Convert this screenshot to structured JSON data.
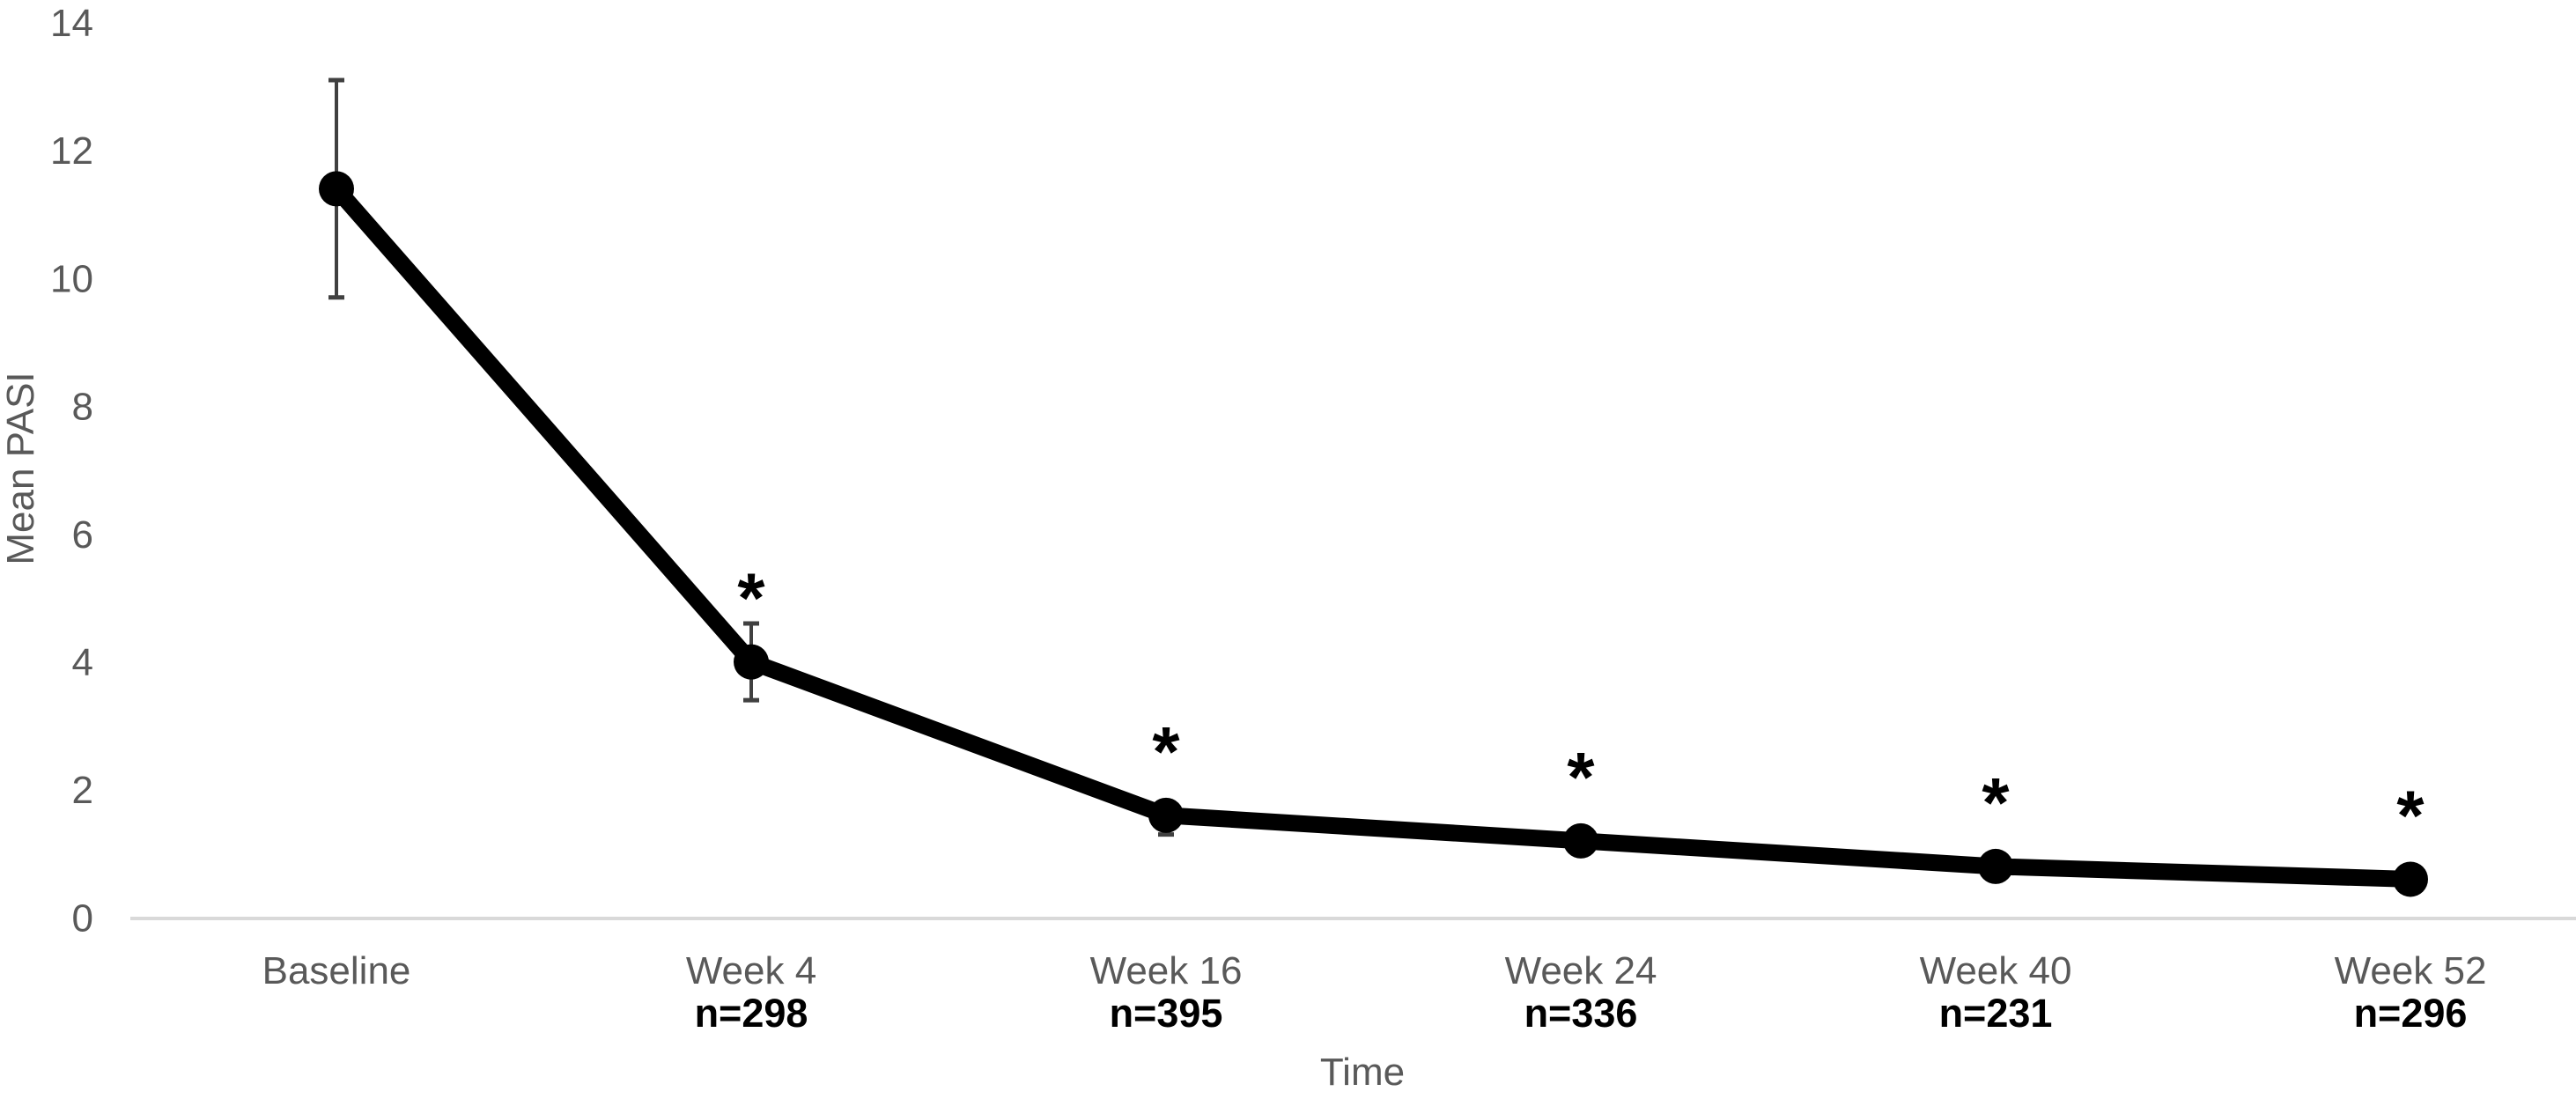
{
  "chart_data": {
    "type": "line",
    "title": "",
    "xlabel": "Time",
    "ylabel": "Mean PASI",
    "ylim": [
      0,
      14
    ],
    "yticks": [
      0,
      2,
      4,
      6,
      8,
      10,
      12,
      14
    ],
    "grid": false,
    "legend": null,
    "categories": [
      "Baseline",
      "Week 4",
      "Week 16",
      "Week 24",
      "Week 40",
      "Week 52"
    ],
    "n_labels": [
      "",
      "n=298",
      "n=395",
      "n=336",
      "n=231",
      "n=296"
    ],
    "series": [
      {
        "name": "Mean PASI",
        "values": [
          11.4,
          4.0,
          1.6,
          1.2,
          0.8,
          0.6
        ],
        "error_low": [
          9.7,
          3.4,
          1.3,
          null,
          null,
          null
        ],
        "error_high": [
          13.1,
          4.6,
          1.8,
          null,
          null,
          null
        ],
        "significant": [
          false,
          true,
          true,
          true,
          true,
          true
        ],
        "significance_marker": "*"
      }
    ],
    "colors": {
      "series": "#000000",
      "axis_text": "#595959",
      "axis_line": "#d9d9d9",
      "error_bar": "#404040",
      "n_label": "#000000"
    }
  }
}
